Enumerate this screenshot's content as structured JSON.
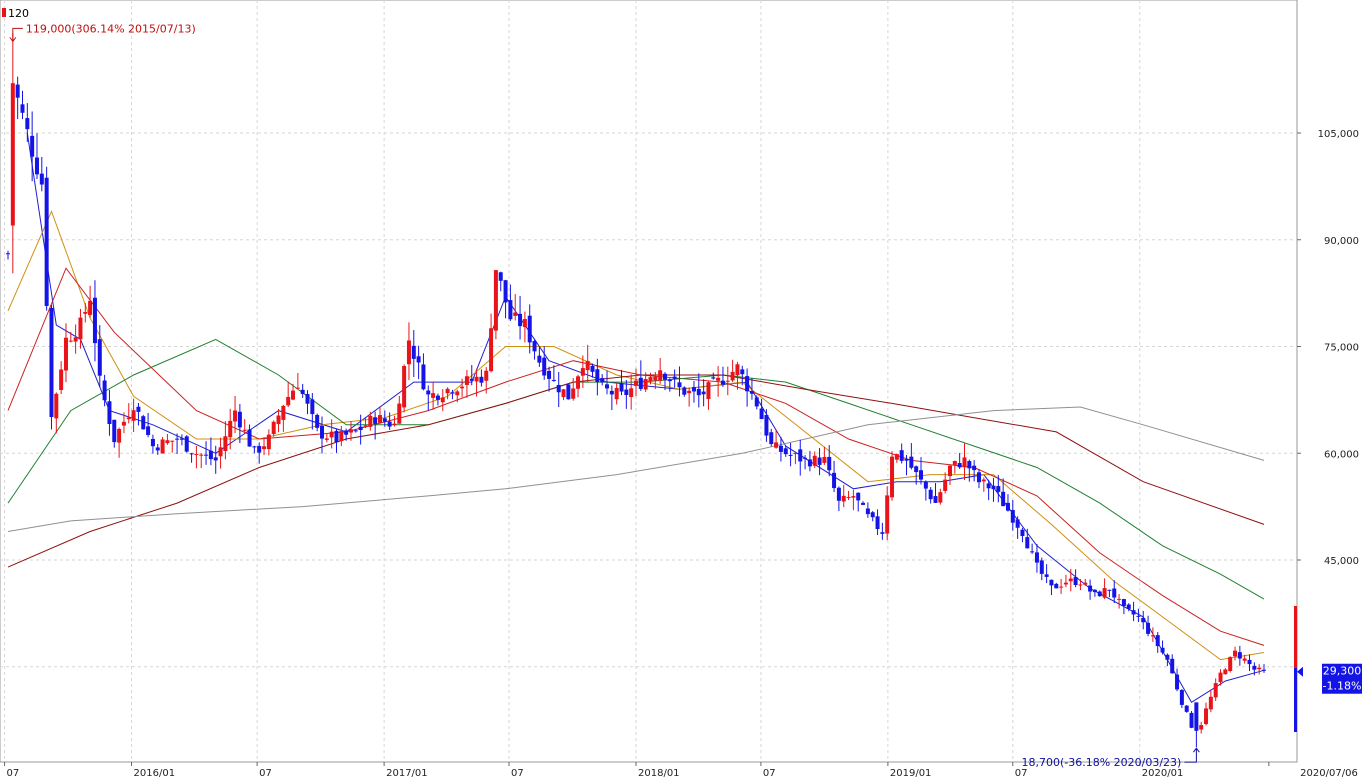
{
  "chart_data": {
    "type": "candlestick",
    "interval": "weekly",
    "title": "",
    "xlabel": "",
    "ylabel": "",
    "ylim": [
      15000,
      126000
    ],
    "x_range": [
      "2015-07-06",
      "2020/07/06"
    ],
    "grid": true,
    "y_ticks": [
      {
        "value": 105000,
        "label": "105,000"
      },
      {
        "value": 90000,
        "label": "90,000"
      },
      {
        "value": 75000,
        "label": "75,000"
      },
      {
        "value": 60000,
        "label": "60,000"
      },
      {
        "value": 45000,
        "label": "45,000"
      }
    ],
    "x_ticks": [
      {
        "date": "2015-07-01",
        "label": "07"
      },
      {
        "date": "2016-01-01",
        "label": "2016/01"
      },
      {
        "date": "2016-07-01",
        "label": "07"
      },
      {
        "date": "2017-01-01",
        "label": "2017/01"
      },
      {
        "date": "2017-07-01",
        "label": "07"
      },
      {
        "date": "2018-01-01",
        "label": "2018/01"
      },
      {
        "date": "2018-07-01",
        "label": "07"
      },
      {
        "date": "2019-01-01",
        "label": "2019/01"
      },
      {
        "date": "2019-07-01",
        "label": "07"
      },
      {
        "date": "2020-01-01",
        "label": "2020/01"
      },
      {
        "date": "2020-07-06",
        "label": "2020/07/06"
      }
    ],
    "top_left_label": "120",
    "annotations": {
      "high": {
        "value": 119000,
        "date": "2015-07-13",
        "label": "119,000(306.14% 2015/07/13)"
      },
      "low": {
        "value": 18700,
        "date": "2020-03-23",
        "label": "18,700(-36.18% 2020/03/23)"
      }
    },
    "last": {
      "price": 29300,
      "price_label": "29,300",
      "change_label": "(-1.18%)"
    },
    "up_color": "#e8141a",
    "down_color": "#1414e6",
    "close_path": [
      [
        "2015-07-06",
        88000
      ],
      [
        "2015-07-13",
        112000
      ],
      [
        "2015-08-03",
        105000
      ],
      [
        "2015-08-24",
        98000
      ],
      [
        "2015-09-07",
        65000
      ],
      [
        "2015-09-28",
        76000
      ],
      [
        "2015-10-19",
        78000
      ],
      [
        "2015-11-02",
        82000
      ],
      [
        "2015-11-16",
        70000
      ],
      [
        "2015-12-07",
        62000
      ],
      [
        "2016-01-04",
        67000
      ],
      [
        "2016-02-01",
        61000
      ],
      [
        "2016-03-07",
        62000
      ],
      [
        "2016-04-04",
        60000
      ],
      [
        "2016-05-02",
        59000
      ],
      [
        "2016-05-30",
        66000
      ],
      [
        "2016-06-27",
        60000
      ],
      [
        "2016-07-18",
        62000
      ],
      [
        "2016-08-08",
        67000
      ],
      [
        "2016-08-29",
        70000
      ],
      [
        "2016-09-26",
        63000
      ],
      [
        "2016-10-24",
        62000
      ],
      [
        "2016-11-21",
        63000
      ],
      [
        "2016-12-19",
        65000
      ],
      [
        "2017-01-16",
        64000
      ],
      [
        "2017-02-06",
        76000
      ],
      [
        "2017-03-06",
        68000
      ],
      [
        "2017-04-03",
        69000
      ],
      [
        "2017-05-01",
        70000
      ],
      [
        "2017-05-29",
        71000
      ],
      [
        "2017-06-12",
        86000
      ],
      [
        "2017-07-03",
        79000
      ],
      [
        "2017-07-24",
        78000
      ],
      [
        "2017-08-14",
        73000
      ],
      [
        "2017-09-04",
        70000
      ],
      [
        "2017-09-25",
        68000
      ],
      [
        "2017-10-16",
        73000
      ],
      [
        "2017-11-13",
        69000
      ],
      [
        "2017-12-11",
        68000
      ],
      [
        "2018-01-08",
        70000
      ],
      [
        "2018-02-05",
        72000
      ],
      [
        "2018-03-05",
        69000
      ],
      [
        "2018-04-02",
        68000
      ],
      [
        "2018-04-30",
        70000
      ],
      [
        "2018-05-28",
        72000
      ],
      [
        "2018-06-25",
        67000
      ],
      [
        "2018-07-16",
        61000
      ],
      [
        "2018-08-06",
        60000
      ],
      [
        "2018-09-03",
        59000
      ],
      [
        "2018-10-01",
        59000
      ],
      [
        "2018-10-22",
        53000
      ],
      [
        "2018-11-12",
        54000
      ],
      [
        "2018-12-03",
        51000
      ],
      [
        "2018-12-24",
        49000
      ],
      [
        "2019-01-07",
        60000
      ],
      [
        "2019-01-28",
        59000
      ],
      [
        "2019-02-18",
        56000
      ],
      [
        "2019-03-11",
        53000
      ],
      [
        "2019-04-01",
        58000
      ],
      [
        "2019-04-22",
        59000
      ],
      [
        "2019-05-13",
        56000
      ],
      [
        "2019-06-03",
        55000
      ],
      [
        "2019-06-24",
        52000
      ],
      [
        "2019-07-15",
        49000
      ],
      [
        "2019-08-05",
        44000
      ],
      [
        "2019-08-26",
        41000
      ],
      [
        "2019-09-16",
        42000
      ],
      [
        "2019-10-07",
        42000
      ],
      [
        "2019-10-28",
        40000
      ],
      [
        "2019-11-18",
        41000
      ],
      [
        "2019-12-09",
        38000
      ],
      [
        "2019-12-30",
        37000
      ],
      [
        "2020-01-20",
        34000
      ],
      [
        "2020-02-10",
        31000
      ],
      [
        "2020-03-02",
        25000
      ],
      [
        "2020-03-23",
        20000
      ],
      [
        "2020-04-06",
        24000
      ],
      [
        "2020-04-27",
        29000
      ],
      [
        "2020-05-18",
        32000
      ],
      [
        "2020-06-01",
        31000
      ],
      [
        "2020-06-15",
        29600
      ],
      [
        "2020-06-29",
        29300
      ]
    ],
    "moving_averages": [
      {
        "color": "#2020d0",
        "points": [
          [
            "2015-08-03",
            105000
          ],
          [
            "2015-09-14",
            78000
          ],
          [
            "2015-10-19",
            76000
          ],
          [
            "2015-11-30",
            66000
          ],
          [
            "2016-02-01",
            64000
          ],
          [
            "2016-05-02",
            60000
          ],
          [
            "2016-08-01",
            66000
          ],
          [
            "2016-11-07",
            63000
          ],
          [
            "2017-02-13",
            70000
          ],
          [
            "2017-05-08",
            70000
          ],
          [
            "2017-06-26",
            82000
          ],
          [
            "2017-08-28",
            73000
          ],
          [
            "2017-11-20",
            70000
          ],
          [
            "2018-03-05",
            69000
          ],
          [
            "2018-06-11",
            70000
          ],
          [
            "2018-08-06",
            61000
          ],
          [
            "2018-11-12",
            55000
          ],
          [
            "2019-01-14",
            56000
          ],
          [
            "2019-03-18",
            56000
          ],
          [
            "2019-05-20",
            57000
          ],
          [
            "2019-08-05",
            47000
          ],
          [
            "2019-10-21",
            41000
          ],
          [
            "2020-01-06",
            37000
          ],
          [
            "2020-03-16",
            25000
          ],
          [
            "2020-05-04",
            28000
          ],
          [
            "2020-06-29",
            29500
          ]
        ]
      },
      {
        "color": "#d09010",
        "points": [
          [
            "2015-07-06",
            80000
          ],
          [
            "2015-09-07",
            94000
          ],
          [
            "2015-11-02",
            79000
          ],
          [
            "2016-01-04",
            68000
          ],
          [
            "2016-04-04",
            62000
          ],
          [
            "2016-07-04",
            62000
          ],
          [
            "2016-10-03",
            64000
          ],
          [
            "2017-01-02",
            65000
          ],
          [
            "2017-04-03",
            68000
          ],
          [
            "2017-06-26",
            75000
          ],
          [
            "2017-09-04",
            75000
          ],
          [
            "2017-12-04",
            71000
          ],
          [
            "2018-03-05",
            69000
          ],
          [
            "2018-06-04",
            70000
          ],
          [
            "2018-09-03",
            63000
          ],
          [
            "2018-12-03",
            56000
          ],
          [
            "2019-03-04",
            57000
          ],
          [
            "2019-06-03",
            57000
          ],
          [
            "2019-08-26",
            50000
          ],
          [
            "2019-11-25",
            42000
          ],
          [
            "2020-02-17",
            36000
          ],
          [
            "2020-04-27",
            31000
          ],
          [
            "2020-06-29",
            32000
          ]
        ]
      },
      {
        "color": "#cc2020",
        "points": [
          [
            "2015-07-06",
            66000
          ],
          [
            "2015-09-28",
            86000
          ],
          [
            "2015-12-07",
            77000
          ],
          [
            "2016-04-04",
            66000
          ],
          [
            "2016-07-04",
            62000
          ],
          [
            "2016-11-07",
            63000
          ],
          [
            "2017-03-06",
            66000
          ],
          [
            "2017-06-26",
            70000
          ],
          [
            "2017-10-02",
            73000
          ],
          [
            "2018-01-08",
            71000
          ],
          [
            "2018-05-07",
            70000
          ],
          [
            "2018-08-06",
            67000
          ],
          [
            "2018-11-05",
            62000
          ],
          [
            "2019-02-04",
            59000
          ],
          [
            "2019-05-06",
            58000
          ],
          [
            "2019-08-05",
            54000
          ],
          [
            "2019-11-04",
            46000
          ],
          [
            "2020-02-03",
            40000
          ],
          [
            "2020-04-27",
            35000
          ],
          [
            "2020-06-29",
            33000
          ]
        ]
      },
      {
        "color": "#208030",
        "points": [
          [
            "2015-07-06",
            53000
          ],
          [
            "2015-10-05",
            66000
          ],
          [
            "2016-01-04",
            71000
          ],
          [
            "2016-05-02",
            76000
          ],
          [
            "2016-08-01",
            71000
          ],
          [
            "2016-11-07",
            64000
          ],
          [
            "2017-03-06",
            64000
          ],
          [
            "2017-06-26",
            67000
          ],
          [
            "2017-10-02",
            70000
          ],
          [
            "2018-01-08",
            70000
          ],
          [
            "2018-05-07",
            71000
          ],
          [
            "2018-08-06",
            70000
          ],
          [
            "2018-11-05",
            67000
          ],
          [
            "2019-02-04",
            64000
          ],
          [
            "2019-05-06",
            61000
          ],
          [
            "2019-08-05",
            58000
          ],
          [
            "2019-11-04",
            53000
          ],
          [
            "2020-02-03",
            47000
          ],
          [
            "2020-04-27",
            43000
          ],
          [
            "2020-06-29",
            39500
          ]
        ]
      },
      {
        "color": "#901010",
        "points": [
          [
            "2015-07-06",
            44000
          ],
          [
            "2015-11-02",
            49000
          ],
          [
            "2016-03-07",
            53000
          ],
          [
            "2016-07-04",
            58000
          ],
          [
            "2016-11-07",
            62000
          ],
          [
            "2017-03-06",
            64000
          ],
          [
            "2017-06-26",
            67000
          ],
          [
            "2017-10-02",
            70000
          ],
          [
            "2018-01-08",
            71000
          ],
          [
            "2018-05-07",
            71000
          ],
          [
            "2018-09-03",
            69000
          ],
          [
            "2019-01-07",
            67000
          ],
          [
            "2019-05-06",
            65000
          ],
          [
            "2019-09-02",
            63000
          ],
          [
            "2020-01-06",
            56000
          ],
          [
            "2020-06-29",
            50000
          ]
        ]
      },
      {
        "color": "#909090",
        "points": [
          [
            "2015-07-06",
            49000
          ],
          [
            "2015-10-05",
            50500
          ],
          [
            "2016-03-07",
            51500
          ],
          [
            "2016-09-05",
            52500
          ],
          [
            "2017-03-06",
            54000
          ],
          [
            "2017-06-26",
            55000
          ],
          [
            "2017-12-04",
            57000
          ],
          [
            "2018-06-04",
            60000
          ],
          [
            "2018-12-03",
            64000
          ],
          [
            "2019-06-03",
            66000
          ],
          [
            "2019-10-07",
            66500
          ],
          [
            "2020-01-06",
            64000
          ],
          [
            "2020-06-29",
            59000
          ]
        ]
      }
    ]
  }
}
